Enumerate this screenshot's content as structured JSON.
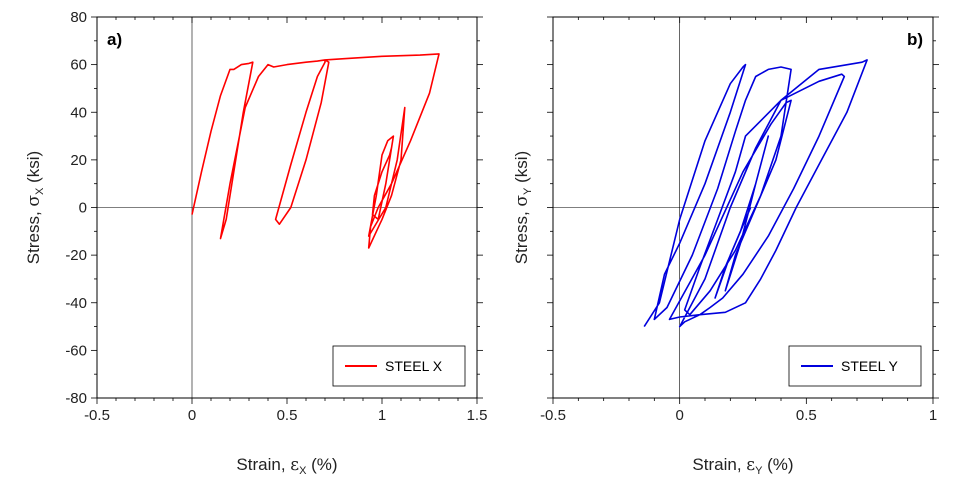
{
  "chart_data": [
    {
      "type": "line",
      "panel_label": "a)",
      "xlabel_prefix": "Strain, ",
      "xlabel_symbol": "ε",
      "xlabel_sub": "X",
      "xlabel_suffix": " (%)",
      "ylabel_prefix": "Stress, ",
      "ylabel_symbol": "σ",
      "ylabel_sub": "X",
      "ylabel_suffix": " (ksi)",
      "xlim": [
        -0.5,
        1.5
      ],
      "ylim": [
        -80,
        80
      ],
      "xticks": [
        -0.5,
        0,
        0.5,
        1,
        1.5
      ],
      "xtick_labels": [
        "-0.5",
        "0",
        "0.5",
        "1",
        "1.5"
      ],
      "yticks": [
        -80,
        -60,
        -40,
        -20,
        0,
        20,
        40,
        60,
        80
      ],
      "ytick_labels": [
        "-80",
        "-60",
        "-40",
        "-20",
        "0",
        "20",
        "40",
        "60",
        "80"
      ],
      "grid": false,
      "zero_lines": true,
      "legend_position": "bottom-right",
      "series": [
        {
          "name": "STEEL X",
          "color": "#ff0000",
          "x": [
            0.0,
            0.05,
            0.1,
            0.15,
            0.2,
            0.22,
            0.26,
            0.3,
            0.32,
            0.27,
            0.22,
            0.18,
            0.15,
            0.2,
            0.28,
            0.35,
            0.4,
            0.43,
            0.5,
            0.6,
            0.66,
            0.7,
            0.72,
            0.68,
            0.6,
            0.52,
            0.46,
            0.44,
            0.52,
            0.6,
            0.66,
            0.7,
            0.7,
            0.8,
            1.0,
            1.2,
            1.3,
            1.25,
            1.15,
            1.05,
            0.98,
            0.94,
            0.93,
            1.0,
            1.05,
            1.1,
            1.12,
            1.08,
            1.02,
            0.96,
            0.93,
            0.97,
            1.0,
            1.03,
            1.06,
            1.02,
            0.98,
            0.95,
            0.96,
            1.0,
            1.04,
            1.05
          ],
          "y": [
            -3,
            15,
            32,
            47,
            58,
            58,
            60,
            60.5,
            61,
            40,
            15,
            -5,
            -13,
            10,
            42,
            55,
            60,
            59,
            60,
            61,
            61.5,
            62,
            61,
            44,
            20,
            0,
            -7,
            -5,
            18,
            40,
            55,
            61,
            62,
            62.5,
            63.5,
            64,
            64.5,
            48,
            28,
            10,
            0,
            -8,
            -17,
            -5,
            5,
            20,
            42,
            20,
            0,
            -8,
            -12,
            5,
            22,
            28,
            30,
            10,
            -5,
            -3,
            5,
            15,
            22,
            25
          ]
        }
      ]
    },
    {
      "type": "line",
      "panel_label": "b)",
      "xlabel_prefix": "Strain, ",
      "xlabel_symbol": "ε",
      "xlabel_sub": "Y",
      "xlabel_suffix": " (%)",
      "ylabel_prefix": "Stress, ",
      "ylabel_symbol": "σ",
      "ylabel_sub": "Y",
      "ylabel_suffix": " (ksi)",
      "xlim": [
        -0.5,
        1
      ],
      "ylim": [
        -80,
        80
      ],
      "xticks": [
        -0.5,
        0,
        0.5,
        1
      ],
      "xtick_labels": [
        "-0.5",
        "0",
        "0.5",
        "1"
      ],
      "yticks": [
        -80,
        -60,
        -40,
        -20,
        0,
        20,
        40,
        60,
        80
      ],
      "ytick_labels": [],
      "grid": false,
      "zero_lines": true,
      "legend_position": "bottom-right",
      "series": [
        {
          "name": "STEEL Y",
          "color": "#0000dd",
          "x": [
            -0.14,
            -0.08,
            0.0,
            0.1,
            0.2,
            0.25,
            0.26,
            0.2,
            0.1,
            0.0,
            -0.06,
            -0.1,
            -0.05,
            0.05,
            0.15,
            0.22,
            0.26,
            0.3,
            0.35,
            0.4,
            0.44,
            0.4,
            0.32,
            0.22,
            0.12,
            0.04,
            0.02,
            0.08,
            0.15,
            0.22,
            0.26,
            0.4,
            0.55,
            0.64,
            0.65,
            0.55,
            0.45,
            0.35,
            0.25,
            0.17,
            0.12,
            0.08,
            0.02,
            0.0,
            0.1,
            0.2,
            0.3,
            0.4,
            0.55,
            0.72,
            0.74,
            0.66,
            0.56,
            0.46,
            0.38,
            0.32,
            0.26,
            0.18,
            0.08,
            0.0,
            -0.04,
            0.1,
            0.25,
            0.36,
            0.42,
            0.44,
            0.38,
            0.3,
            0.22,
            0.18,
            0.24,
            0.3,
            0.35,
            0.3,
            0.24,
            0.18,
            0.14,
            0.2,
            0.28
          ],
          "y": [
            -50,
            -40,
            -5,
            28,
            52,
            59,
            60,
            40,
            10,
            -15,
            -28,
            -47,
            -42,
            -20,
            8,
            32,
            45,
            55,
            58,
            59,
            58,
            30,
            5,
            -18,
            -35,
            -45,
            -43,
            -25,
            -5,
            15,
            30,
            45,
            53,
            56,
            55,
            30,
            8,
            -12,
            -28,
            -38,
            -42,
            -45,
            -48,
            -50,
            -30,
            0,
            25,
            45,
            58,
            61,
            62,
            40,
            20,
            0,
            -18,
            -30,
            -40,
            -44,
            -45,
            -46,
            -47,
            -20,
            15,
            35,
            44,
            45,
            20,
            0,
            -20,
            -35,
            -15,
            10,
            30,
            10,
            -10,
            -25,
            -38,
            -20,
            0
          ]
        }
      ]
    }
  ]
}
